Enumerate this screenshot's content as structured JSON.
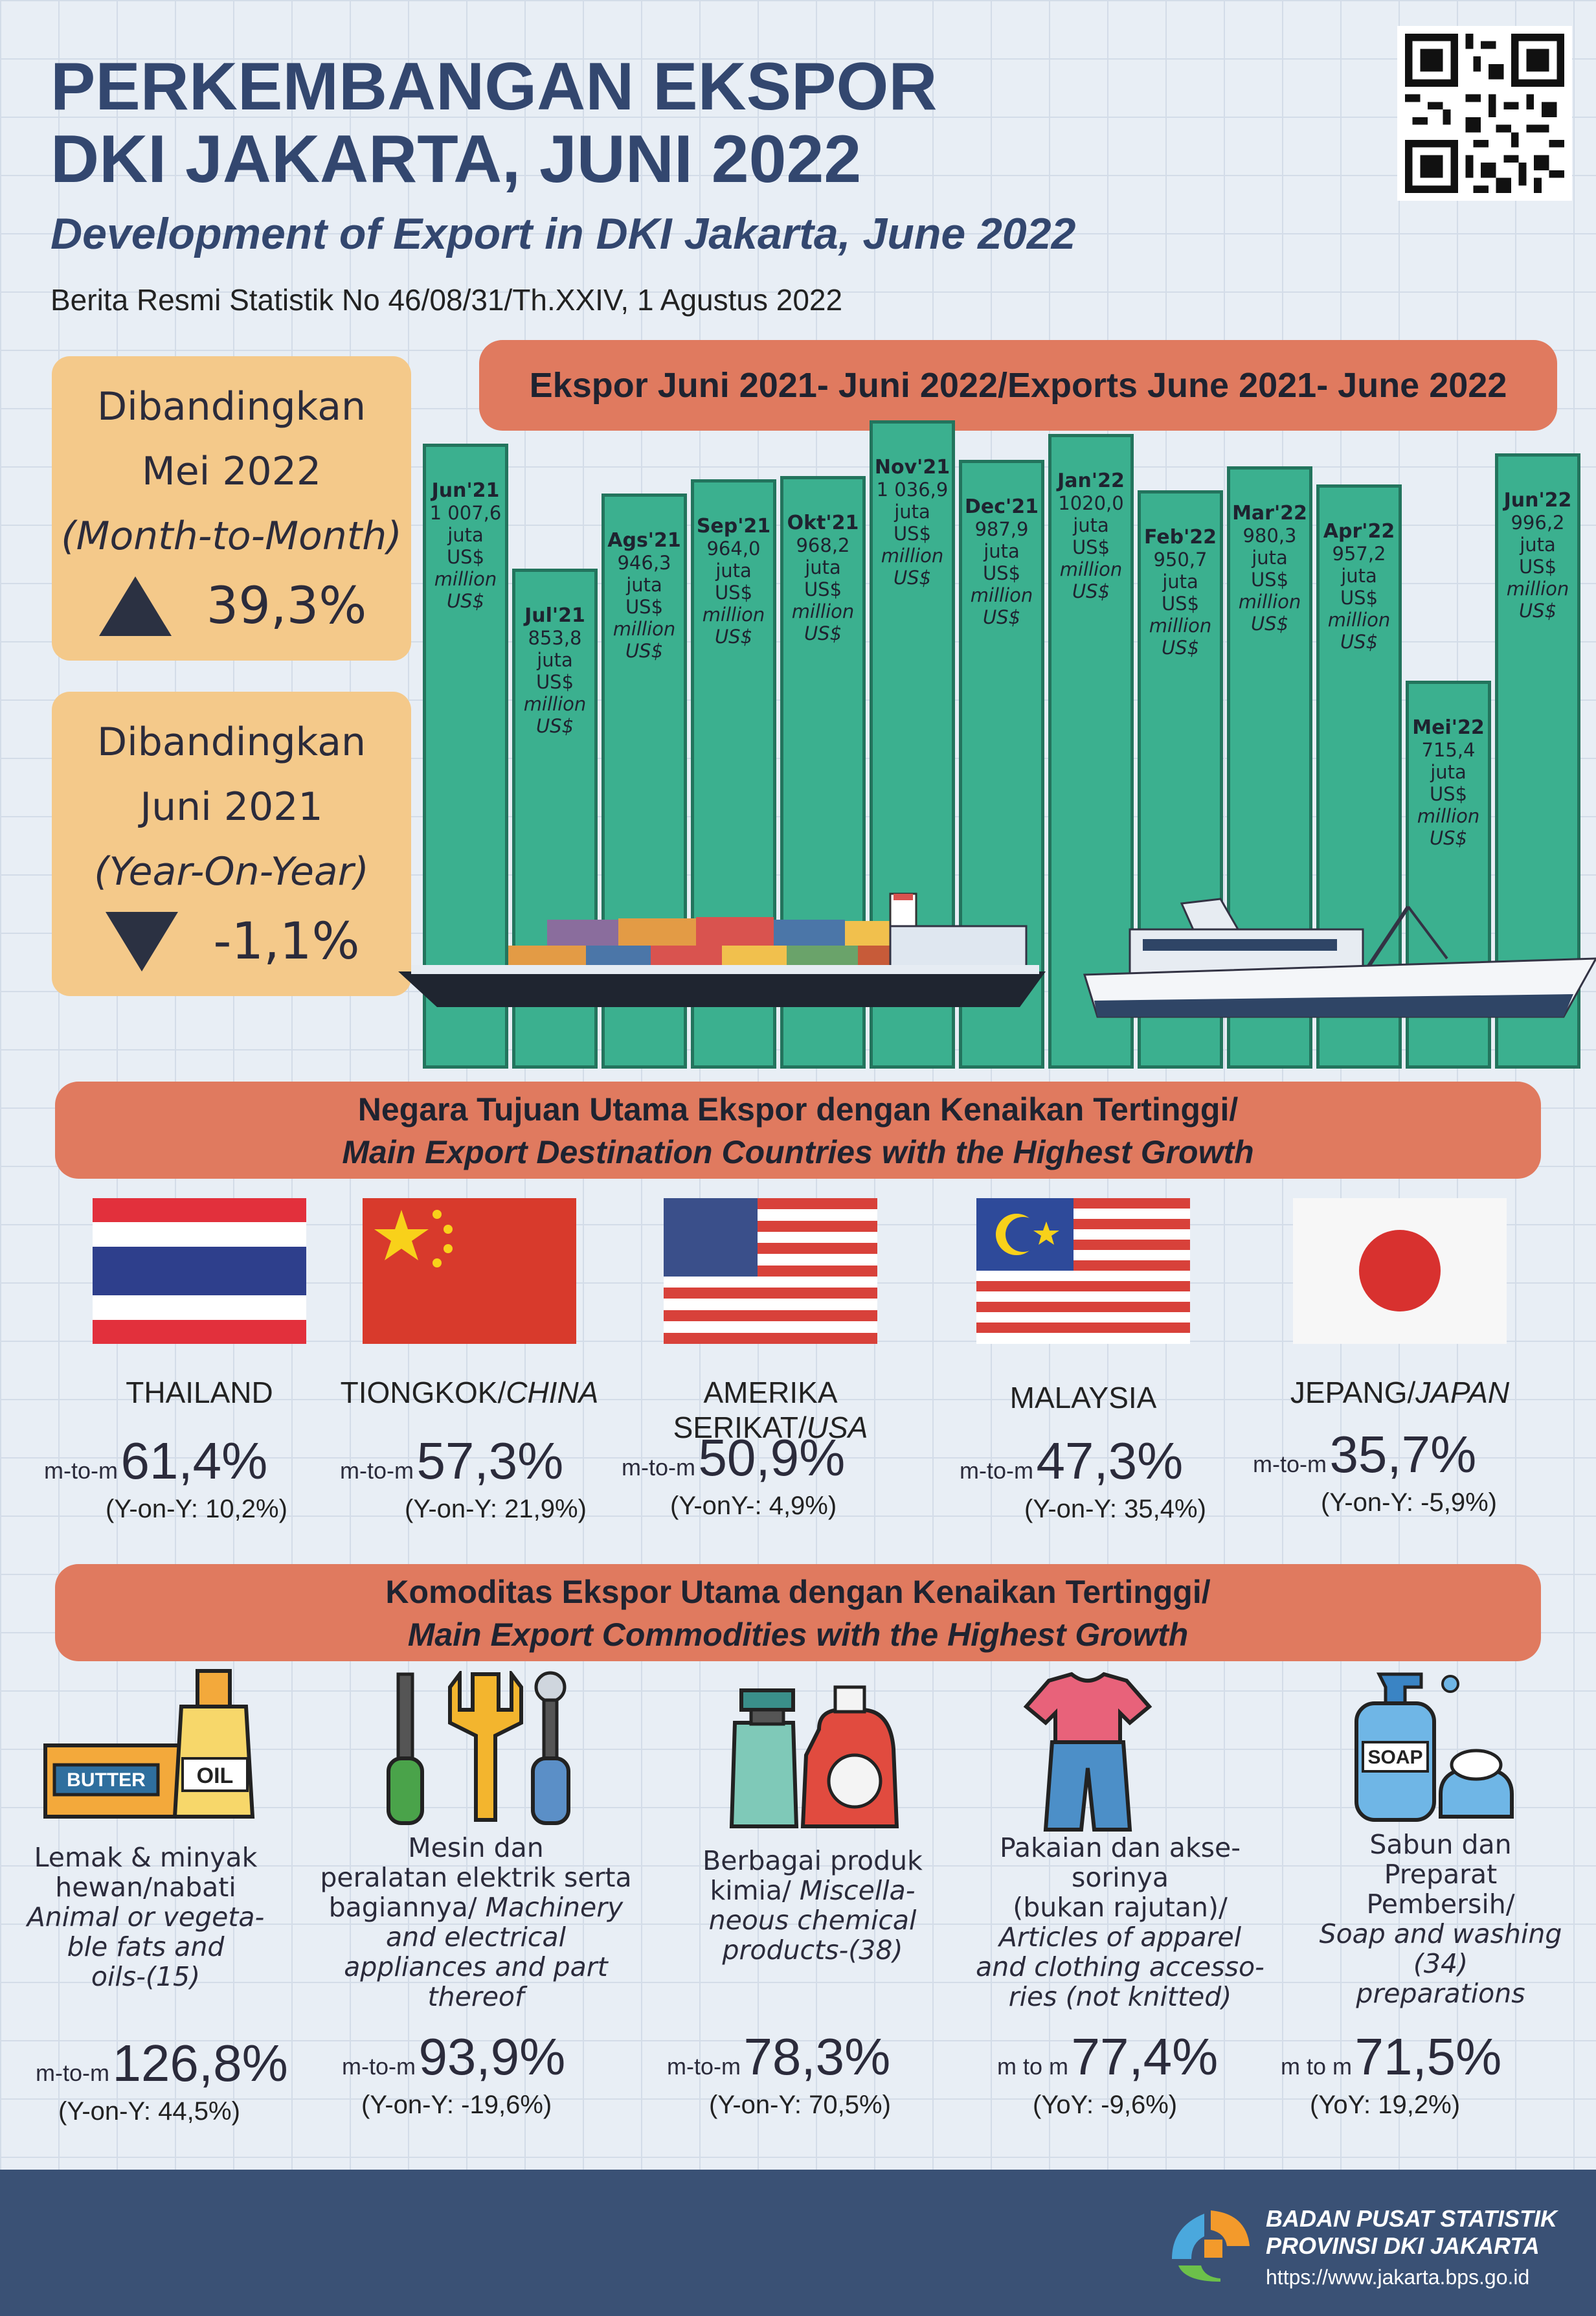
{
  "header": {
    "title_line1": "PERKEMBANGAN EKSPOR",
    "title_line2": "DKI JAKARTA, JUNI 2022",
    "subtitle": "Development of Export in DKI Jakarta, June 2022",
    "brs": "Berita Resmi Statistik No 46/08/31/Th.XXIV, 1 Agustus 2022"
  },
  "mtm": {
    "l1": "Dibandingkan",
    "l2": "Mei 2022",
    "l3": "(Month-to-Month)",
    "value": "39,3%"
  },
  "yoy": {
    "l1": "Dibandingkan",
    "l2": "Juni 2021",
    "l3": "(Year-On-Year)",
    "value": "-1,1%"
  },
  "chart_banner": "Ekspor Juni 2021- Juni 2022/Exports June 2021- June 2022",
  "chart_data": {
    "type": "bar",
    "title": "Ekspor Juni 2021- Juni 2022/Exports June 2021- June 2022",
    "categories": [
      "Jun'21",
      "Jul'21",
      "Ags'21",
      "Sep'21",
      "Okt'21",
      "Nov'21",
      "Dec'21",
      "Jan'22",
      "Feb'22",
      "Mar'22",
      "Apr'22",
      "Mei'22",
      "Jun'22"
    ],
    "labels": [
      "1 007,6",
      "853,8",
      "946,3",
      "964,0",
      "968,2",
      "1 036,9",
      "987,9",
      "1020,0",
      "950,7",
      "980,3",
      "957,2",
      "715,4",
      "996,2"
    ],
    "values": [
      1007.6,
      853.8,
      946.3,
      964.0,
      968.2,
      1036.9,
      987.9,
      1020.0,
      950.7,
      980.3,
      957.2,
      715.4,
      996.2
    ],
    "unit_id": "juta US$",
    "unit_en": "million US$"
  },
  "countries": {
    "banner_l1": "Negara Tujuan Utama Ekspor dengan Kenaikan Tertinggi/",
    "banner_l2": "Main Export Destination Countries with the Highest Growth",
    "items": [
      {
        "name": "THAILAND",
        "name_en": "",
        "prefix": "m-to-m",
        "value": "61,4%",
        "yoy": "(Y-on-Y: 10,2%)"
      },
      {
        "name": "TIONGKOK/",
        "name_en": "CHINA",
        "prefix": "m-to-m",
        "value": "57,3%",
        "yoy": "(Y-on-Y: 21,9%)"
      },
      {
        "name": "AMERIKA SERIKAT/",
        "name_en": "USA",
        "prefix": "m-to-m",
        "value": "50,9%",
        "yoy": "(Y-onY-: 4,9%)"
      },
      {
        "name": "MALAYSIA",
        "name_en": "",
        "prefix": "m-to-m",
        "value": "47,3%",
        "yoy": "(Y-on-Y: 35,4%)"
      },
      {
        "name": "JEPANG/",
        "name_en": "JAPAN",
        "prefix": "m-to-m",
        "value": "35,7%",
        "yoy": "(Y-on-Y: -5,9%)"
      }
    ]
  },
  "commodities": {
    "banner_l1": "Komoditas Ekspor Utama dengan Kenaikan Tertinggi/",
    "banner_l2": "Main Export Commodities with the Highest Growth",
    "items": [
      {
        "id1": "Lemak & minyak",
        "id2": "hewan/nabati",
        "en1": "Animal or vegeta-",
        "en2": "ble fats and",
        "en3": "oils-(15)",
        "en4": "",
        "prefix": "m-to-m",
        "value": "126,8%",
        "yoy": "(Y-on-Y: 44,5%)"
      },
      {
        "id1": "Mesin dan",
        "id2": "peralatan  elektrik serta",
        "id3": "bagiannya/",
        "en1": "Machinery",
        "en2": "and electrical",
        "en3": "appliances and part",
        "en4": "thereof",
        "prefix": "m-to-m",
        "value": "93,9%",
        "yoy": "(Y-on-Y: -19,6%)"
      },
      {
        "id1": "Berbagai produk",
        "id2": "kimia/",
        "en1": "Miscella-",
        "en2": "neous chemical",
        "en3": "products-(38)",
        "prefix": "m-to-m",
        "value": "78,3%",
        "yoy": "(Y-on-Y: 70,5%)"
      },
      {
        "id1": "Pakaian dan akse-",
        "id2": "sorinya",
        "id3": "(bukan rajutan)/",
        "en1": "Articles of apparel",
        "en2": "and clothing accesso-",
        "en3": "ries (not knitted)",
        "prefix": "m to m",
        "value": "77,4%",
        "yoy": "(YoY: -9,6%)"
      },
      {
        "id1": "Sabun dan",
        "id2": "Preparat",
        "id3": "Pembersih/",
        "en1": "Soap and washing",
        "en2": "(34)",
        "en3": "preparations",
        "prefix": "m to m",
        "value": "71,5%",
        "yoy": "(YoY: 19,2%)"
      }
    ],
    "icon_text": {
      "butter": "BUTTER",
      "oil": "OIL",
      "soap": "SOAP"
    }
  },
  "footer": {
    "org1": "BADAN PUSAT STATISTIK",
    "org2": "PROVINSI DKI JAKARTA",
    "url": "https://www.jakarta.bps.go.id"
  },
  "colors": {
    "title": "#33476f",
    "banner": "#e07a5f",
    "box": "#f4c98a",
    "bar": "#3bb08f",
    "footer": "#3a5175"
  }
}
